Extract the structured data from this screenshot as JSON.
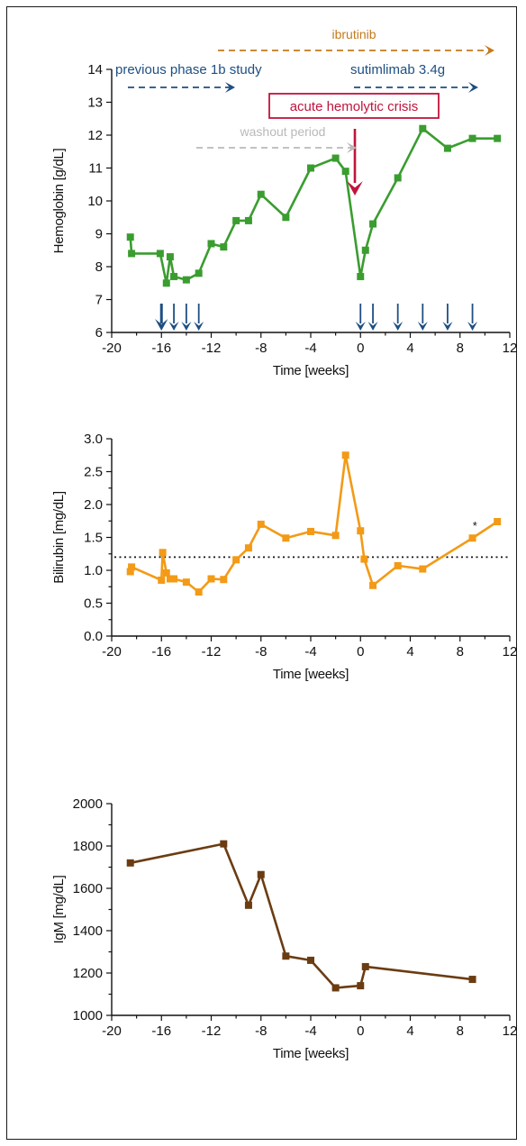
{
  "colors": {
    "hemoglobin": "#3a9d2f",
    "bilirubin": "#f39a16",
    "igm": "#6b3c12",
    "blue": "#1e4f82",
    "ibrutinib": "#c47a1c",
    "washout": "#b9b9b9",
    "crisis": "#c0143c",
    "axis": "#111111"
  },
  "chart_data": [
    {
      "type": "line",
      "xlabel": "Time [weeks]",
      "ylabel": "Hemoglobin [g/dL]",
      "xlim": [
        -20,
        12
      ],
      "ylim": [
        6,
        14
      ],
      "xticks": [
        "-20",
        "-16",
        "-12",
        "-8",
        "-4",
        "0",
        "4",
        "8",
        "12"
      ],
      "yticks": [
        "6",
        "7",
        "8",
        "9",
        "10",
        "11",
        "12",
        "13",
        "14"
      ],
      "series": [
        {
          "x": [
            -18.5,
            -18.4,
            -16.1,
            -15.6,
            -15.3,
            -15,
            -14,
            -13,
            -12,
            -11,
            -10,
            -9,
            -8,
            -6,
            -4,
            -2,
            -1.2,
            0,
            0.4,
            1,
            3,
            5,
            7,
            9,
            11
          ],
          "y": [
            8.9,
            8.4,
            8.4,
            7.5,
            8.3,
            7.7,
            7.6,
            7.8,
            8.7,
            8.6,
            9.4,
            9.4,
            10.2,
            9.5,
            11.0,
            11.3,
            10.9,
            7.7,
            8.5,
            9.3,
            10.7,
            12.2,
            11.6,
            11.9,
            11.9
          ]
        }
      ],
      "annotations": {
        "ibrutinib": "ibrutinib",
        "previous_study": "previous phase 1b study",
        "sutimlimab": "sutimlimab 3.4g",
        "crisis": "acute hemolytic crisis",
        "washout": "washout period"
      },
      "dosing_weeks_previous": [
        -16,
        -15,
        -14,
        -13
      ],
      "dosing_weeks_sutimlimab": [
        0,
        1,
        3,
        5,
        7,
        9
      ]
    },
    {
      "type": "line",
      "xlabel": "Time [weeks]",
      "ylabel": "Bilirubin [mg/dL]",
      "xlim": [
        -20,
        12
      ],
      "ylim": [
        0,
        3
      ],
      "xticks": [
        "-20",
        "-16",
        "-12",
        "-8",
        "-4",
        "0",
        "4",
        "8",
        "12"
      ],
      "yticks": [
        "0.0",
        "0.5",
        "1.0",
        "1.5",
        "2.0",
        "2.5",
        "3.0"
      ],
      "reference_line": 1.2,
      "series": [
        {
          "x": [
            -18.5,
            -18.4,
            -16,
            -15.9,
            -15.6,
            -15.3,
            -15,
            -14,
            -13,
            -12,
            -11,
            -10,
            -9,
            -8,
            -6,
            -4,
            -2,
            -1.2,
            0,
            0.3,
            1,
            3,
            5,
            9,
            11
          ],
          "y": [
            0.98,
            1.05,
            0.85,
            1.27,
            0.96,
            0.87,
            0.87,
            0.82,
            0.67,
            0.87,
            0.86,
            1.16,
            1.34,
            1.7,
            1.49,
            1.59,
            1.53,
            2.75,
            1.6,
            1.17,
            0.77,
            1.07,
            1.02,
            1.49,
            1.74
          ]
        }
      ],
      "asterisk": "*"
    },
    {
      "type": "line",
      "xlabel": "Time [weeks]",
      "ylabel": "IgM [mg/dL]",
      "xlim": [
        -20,
        12
      ],
      "ylim": [
        1000,
        2000
      ],
      "xticks": [
        "-20",
        "-16",
        "-12",
        "-8",
        "-4",
        "0",
        "4",
        "8",
        "12"
      ],
      "yticks": [
        "1000",
        "1200",
        "1400",
        "1600",
        "1800",
        "2000"
      ],
      "series": [
        {
          "x": [
            -18.5,
            -11,
            -9,
            -8,
            -6,
            -4,
            -2,
            0,
            0.4,
            9
          ],
          "y": [
            1720,
            1810,
            1520,
            1665,
            1280,
            1260,
            1130,
            1140,
            1230,
            1170
          ]
        }
      ]
    }
  ]
}
